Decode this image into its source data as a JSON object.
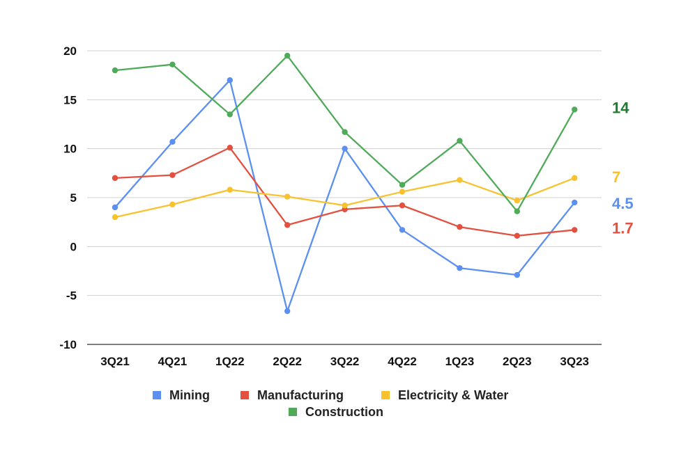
{
  "chart_data": {
    "type": "line",
    "categories": [
      "3Q21",
      "4Q21",
      "1Q22",
      "2Q22",
      "3Q22",
      "4Q22",
      "1Q23",
      "2Q23",
      "3Q23"
    ],
    "ylim": [
      -10,
      20
    ],
    "yticks": [
      "20",
      "15",
      "10",
      "5",
      "0",
      "-5",
      "-10"
    ],
    "grid": true,
    "legend_position": "bottom",
    "series": [
      {
        "name": "Mining",
        "color": "#5b8ff0",
        "values": [
          4.0,
          10.7,
          17.0,
          -6.6,
          10.0,
          1.7,
          -2.2,
          -2.9,
          4.5
        ],
        "end_label": "4.5"
      },
      {
        "name": "Manufacturing",
        "color": "#e4503f",
        "values": [
          7.0,
          7.3,
          10.1,
          2.2,
          3.8,
          4.2,
          2.0,
          1.1,
          1.7
        ],
        "end_label": "1.7"
      },
      {
        "name": "Electricity & Water",
        "color": "#f8c22e",
        "values": [
          3.0,
          4.3,
          5.8,
          5.1,
          4.2,
          5.6,
          6.8,
          4.7,
          7.0
        ],
        "end_label": "7"
      },
      {
        "name": "Construction",
        "color": "#4faa5a",
        "values": [
          18.0,
          18.6,
          13.5,
          19.5,
          11.7,
          6.3,
          10.8,
          3.6,
          14.0
        ],
        "end_label": "14"
      }
    ],
    "end_label_colors": {
      "Mining": "#5b8ff0",
      "Manufacturing": "#e4503f",
      "Electricity & Water": "#f8c22e",
      "Construction": "#1f7a32"
    }
  }
}
